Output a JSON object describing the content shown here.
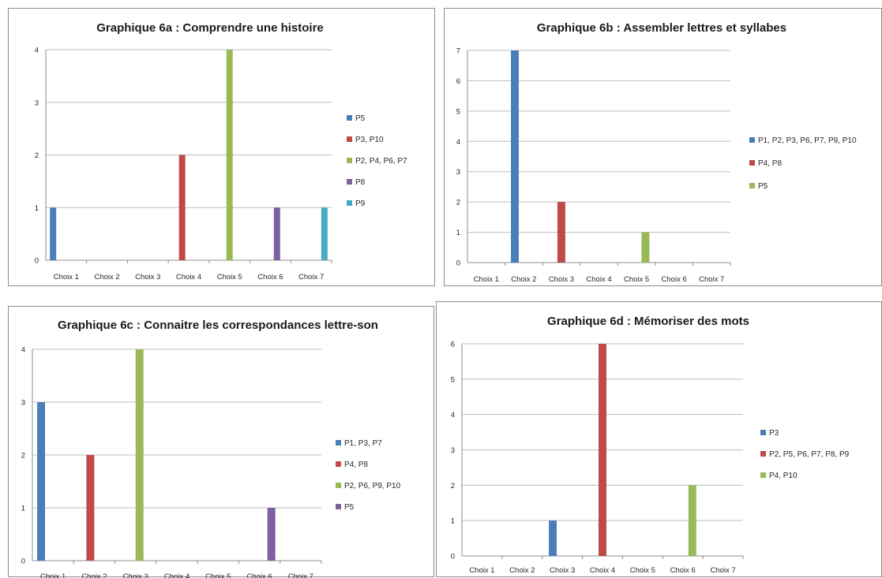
{
  "chart_data": [
    {
      "type": "bar",
      "title": "Graphique 6a : Comprendre une histoire",
      "categories": [
        "Choix 1",
        "Choix 2",
        "Choix 3",
        "Choix 4",
        "Choix 5",
        "Choix 6",
        "Choix 7"
      ],
      "ylim": [
        0,
        4
      ],
      "yticks": [
        0,
        1,
        2,
        3,
        4
      ],
      "grid": true,
      "legend_position": "right",
      "series": [
        {
          "name": "P5",
          "color": "#4a7ebb",
          "values": [
            1,
            0,
            0,
            0,
            0,
            0,
            0
          ]
        },
        {
          "name": "P3, P10",
          "color": "#be4b48",
          "values": [
            0,
            0,
            0,
            2,
            0,
            0,
            0
          ]
        },
        {
          "name": "P2, P4, P6, P7",
          "color": "#98b954",
          "values": [
            0,
            0,
            0,
            0,
            4,
            0,
            0
          ]
        },
        {
          "name": "P8",
          "color": "#7d60a0",
          "values": [
            0,
            0,
            0,
            0,
            0,
            1,
            0
          ]
        },
        {
          "name": "P9",
          "color": "#46aac5",
          "values": [
            0,
            0,
            0,
            0,
            0,
            0,
            1
          ]
        }
      ]
    },
    {
      "type": "bar",
      "title": "Graphique 6b : Assembler lettres et syllabes",
      "categories": [
        "Choix 1",
        "Choix 2",
        "Choix 3",
        "Choix 4",
        "Choix 5",
        "Choix 6",
        "Choix 7"
      ],
      "ylim": [
        0,
        7
      ],
      "yticks": [
        0,
        1,
        2,
        3,
        4,
        5,
        6,
        7
      ],
      "grid": true,
      "legend_position": "right",
      "series": [
        {
          "name": "P1, P2, P3, P6, P7, P9, P10",
          "color": "#4a7ebb",
          "values": [
            0,
            7,
            0,
            0,
            0,
            0,
            0
          ]
        },
        {
          "name": "P4, P8",
          "color": "#be4b48",
          "values": [
            0,
            0,
            2,
            0,
            0,
            0,
            0
          ]
        },
        {
          "name": "P5",
          "color": "#98b954",
          "values": [
            0,
            0,
            0,
            0,
            1,
            0,
            0
          ]
        }
      ]
    },
    {
      "type": "bar",
      "title": "Graphique 6c : Connaitre les correspondances lettre-son",
      "categories": [
        "Choix 1",
        "Choix 2",
        "Choix 3",
        "Choix 4",
        "Choix 5",
        "Choix 6",
        "Choix 7"
      ],
      "ylim": [
        0,
        4
      ],
      "yticks": [
        0,
        1,
        2,
        3,
        4
      ],
      "grid": true,
      "legend_position": "right",
      "series": [
        {
          "name": "P1, P3, P7",
          "color": "#4a7ebb",
          "values": [
            3,
            0,
            0,
            0,
            0,
            0,
            0
          ]
        },
        {
          "name": "P4, P8",
          "color": "#be4b48",
          "values": [
            0,
            2,
            0,
            0,
            0,
            0,
            0
          ]
        },
        {
          "name": "P2, P6, P9, P10",
          "color": "#98b954",
          "values": [
            0,
            0,
            4,
            0,
            0,
            0,
            0
          ]
        },
        {
          "name": "P5",
          "color": "#7d60a0",
          "values": [
            0,
            0,
            0,
            0,
            0,
            1,
            0
          ]
        }
      ]
    },
    {
      "type": "bar",
      "title": "Graphique 6d : Mémoriser des mots",
      "categories": [
        "Choix 1",
        "Choix 2",
        "Choix 3",
        "Choix 4",
        "Choix 5",
        "Choix 6",
        "Choix 7"
      ],
      "ylim": [
        0,
        6
      ],
      "yticks": [
        0,
        1,
        2,
        3,
        4,
        5,
        6
      ],
      "grid": true,
      "legend_position": "right",
      "series": [
        {
          "name": "P3",
          "color": "#4a7ebb",
          "values": [
            0,
            0,
            1,
            0,
            0,
            0,
            0
          ]
        },
        {
          "name": "P2, P5, P6, P7, P8, P9",
          "color": "#be4b48",
          "values": [
            0,
            0,
            0,
            6,
            0,
            0,
            0
          ]
        },
        {
          "name": "P4, P10",
          "color": "#98b954",
          "values": [
            0,
            0,
            0,
            0,
            0,
            2,
            0
          ]
        }
      ]
    }
  ]
}
